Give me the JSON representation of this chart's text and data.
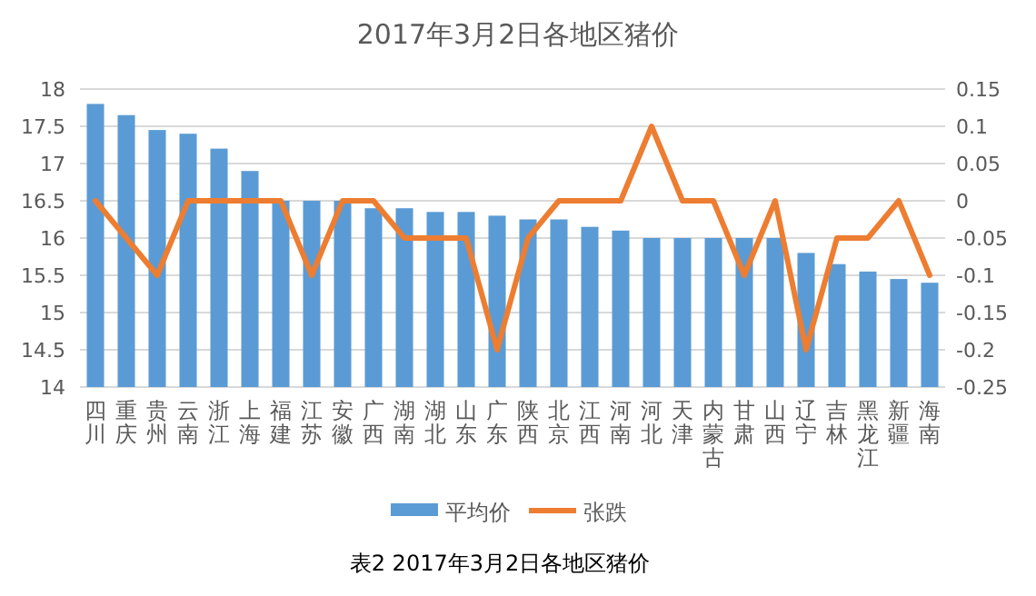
{
  "chart_data": {
    "type": "bar",
    "title": "2017年3月2日各地区猪价",
    "categories": [
      "四川",
      "重庆",
      "贵州",
      "云南",
      "浙江",
      "上海",
      "福建",
      "江苏",
      "安徽",
      "广西",
      "湖南",
      "湖北",
      "山东",
      "广东",
      "陕西",
      "北京",
      "江西",
      "河南",
      "河北",
      "天津",
      "内蒙古",
      "甘肃",
      "山西",
      "辽宁",
      "吉林",
      "黑龙江",
      "新疆",
      "海南"
    ],
    "series": [
      {
        "name": "平均价",
        "color": "#5b9bd5",
        "values": [
          17.8,
          17.65,
          17.45,
          17.4,
          17.2,
          16.9,
          16.5,
          16.5,
          16.5,
          16.4,
          16.4,
          16.35,
          16.35,
          16.3,
          16.25,
          16.25,
          16.15,
          16.1,
          16.0,
          16.0,
          16.0,
          16.0,
          16.0,
          15.8,
          15.65,
          15.55,
          15.45,
          15.4
        ]
      },
      {
        "name": "张跌",
        "type": "line",
        "axis": "y2",
        "color": "#ed7d31",
        "values": [
          0,
          -0.05,
          -0.1,
          0,
          0,
          0,
          0,
          -0.1,
          0,
          0,
          -0.05,
          -0.05,
          -0.05,
          -0.2,
          -0.05,
          0,
          0,
          0,
          0.1,
          0,
          0,
          -0.1,
          0,
          -0.2,
          -0.05,
          -0.05,
          0,
          -0.1
        ]
      }
    ],
    "ylim": [
      14,
      18
    ],
    "yticks": [
      14,
      14.5,
      15,
      15.5,
      16,
      16.5,
      17,
      17.5,
      18
    ],
    "y2lim": [
      -0.25,
      0.15
    ],
    "y2ticks": [
      -0.25,
      -0.2,
      -0.15,
      -0.1,
      -0.05,
      0,
      0.05,
      0.1,
      0.15
    ],
    "grid": "y",
    "legend": "bottom",
    "marker": "none",
    "line_style": "solid",
    "annotations": [
      "表2  2017年3月2日各地区猪价"
    ]
  }
}
